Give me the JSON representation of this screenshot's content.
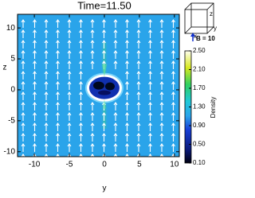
{
  "chart_data": {
    "type": "heatmap",
    "title": "Time=11.50",
    "x_label": "y",
    "y_label": "z",
    "xlim": [
      -12.4,
      10.7
    ],
    "ylim": [
      -10.8,
      12.2
    ],
    "xticks": [
      -10,
      -5,
      0,
      5,
      10
    ],
    "yticks": [
      -10,
      -5,
      0,
      5,
      10
    ],
    "colorbar": {
      "label": "Density",
      "lim": [
        0.1,
        2.5
      ],
      "ticks": [
        {
          "value": 2.5,
          "label": "2.50"
        },
        {
          "value": 2.1,
          "label": "2.10"
        },
        {
          "value": 1.7,
          "label": "1.70"
        },
        {
          "value": 1.3,
          "label": "1.30"
        },
        {
          "value": 0.9,
          "label": "0.90"
        },
        {
          "value": 0.5,
          "label": "0.50"
        },
        {
          "value": 0.1,
          "label": "0.10"
        }
      ]
    },
    "vector_legend": "B = 10",
    "orientation_labels": [
      "z",
      "x",
      "y"
    ]
  }
}
